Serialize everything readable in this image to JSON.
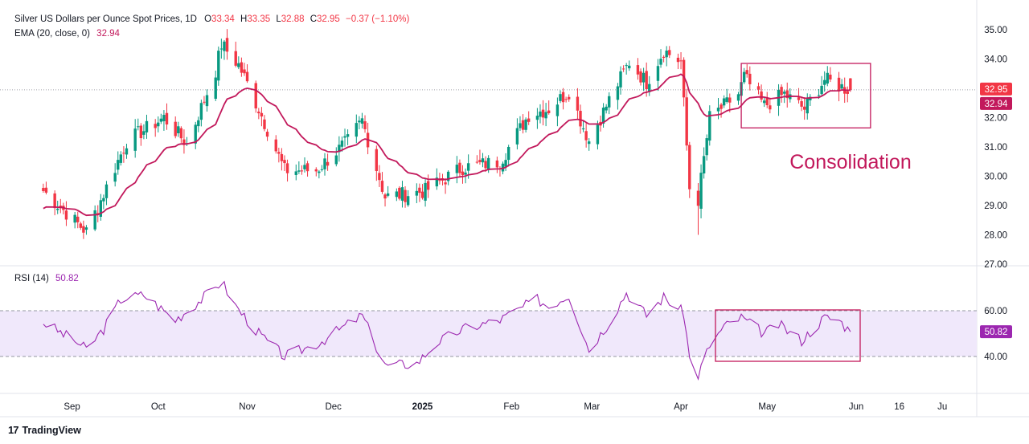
{
  "header": {
    "symbol": "Silver US Dollars per Ounce Spot Prices, 1D",
    "o_label": "O",
    "o_value": "33.34",
    "h_label": "H",
    "h_value": "33.35",
    "l_label": "L",
    "l_value": "32.88",
    "c_label": "C",
    "c_value": "32.95",
    "change": "−0.37 (−1.10%)",
    "ema_label": "EMA (20, close, 0)",
    "ema_value": "32.94",
    "rsi_label": "RSI (14)",
    "rsi_value": "50.82"
  },
  "annotation": {
    "text": "Consolidation"
  },
  "price_badges": {
    "close": "32.95",
    "ema": "32.94",
    "rsi": "50.82"
  },
  "brand": {
    "name": "TradingView",
    "logo": "17"
  },
  "colors": {
    "up": "#089981",
    "down": "#f23645",
    "ema": "#c2185b",
    "rsi": "#9c27b0",
    "rsi_band": "#f0e8fb",
    "box": "#c2185b",
    "axis_text": "#131722"
  },
  "chart_data": [
    {
      "type": "candlestick",
      "title": "Silver US Dollars per Ounce Spot Prices, 1D",
      "ylim": [
        27.0,
        35.3
      ],
      "y_ticks": [
        "35.00",
        "34.00",
        "33.00",
        "32.00",
        "31.00",
        "30.00",
        "29.00",
        "28.00",
        "27.00"
      ],
      "x_ticks": [
        "Sep",
        "Oct",
        "Nov",
        "Dec",
        "2025",
        "Feb",
        "Mar",
        "Apr",
        "May",
        "Jun",
        "16",
        "Ju"
      ],
      "close_anchors": [
        [
          "2024-08-22",
          29.5
        ],
        [
          "2024-09-06",
          28.1
        ],
        [
          "2024-09-12",
          29.4
        ],
        [
          "2024-09-20",
          31.2
        ],
        [
          "2024-10-03",
          32.0
        ],
        [
          "2024-10-11",
          31.1
        ],
        [
          "2024-10-21",
          33.6
        ],
        [
          "2024-10-23",
          34.5
        ],
        [
          "2024-10-29",
          33.8
        ],
        [
          "2024-11-05",
          32.3
        ],
        [
          "2024-11-14",
          30.2
        ],
        [
          "2024-11-25",
          30.2
        ],
        [
          "2024-12-06",
          31.2
        ],
        [
          "2024-12-11",
          31.9
        ],
        [
          "2024-12-19",
          29.3
        ],
        [
          "2024-12-27",
          29.4
        ],
        [
          "2025-01-02",
          29.5
        ],
        [
          "2025-01-15",
          30.3
        ],
        [
          "2025-01-28",
          30.5
        ],
        [
          "2025-02-07",
          32.1
        ],
        [
          "2025-02-14",
          32.3
        ],
        [
          "2025-02-21",
          32.9
        ],
        [
          "2025-02-28",
          31.2
        ],
        [
          "2025-03-07",
          32.6
        ],
        [
          "2025-03-14",
          33.9
        ],
        [
          "2025-03-20",
          33.2
        ],
        [
          "2025-03-26",
          34.3
        ],
        [
          "2025-04-01",
          33.9
        ],
        [
          "2025-04-04",
          29.6
        ],
        [
          "2025-04-07",
          29.2
        ],
        [
          "2025-04-11",
          32.0
        ],
        [
          "2025-04-21",
          32.8
        ],
        [
          "2025-04-23",
          33.4
        ],
        [
          "2025-04-30",
          32.4
        ],
        [
          "2025-05-07",
          32.8
        ],
        [
          "2025-05-14",
          32.3
        ],
        [
          "2025-05-21",
          33.3
        ],
        [
          "2025-05-28",
          33.0
        ],
        [
          "2025-05-30",
          32.95
        ]
      ],
      "ema": {
        "name": "EMA (20, close, 0)",
        "last": 32.94
      },
      "annotations": [
        {
          "text": "Consolidation",
          "box_start": "2025-04-22",
          "box_end": "2025-06-06",
          "box_ylim": [
            31.65,
            33.85
          ]
        }
      ]
    },
    {
      "type": "line",
      "title": "RSI (14)",
      "ylim": [
        30,
        70
      ],
      "y_ticks": [
        "60.00",
        "40.00"
      ],
      "bands": [
        40,
        60
      ],
      "anchors": [
        [
          "2024-08-22",
          55
        ],
        [
          "2024-09-03",
          46
        ],
        [
          "2024-09-06",
          43
        ],
        [
          "2024-09-12",
          52
        ],
        [
          "2024-09-18",
          65
        ],
        [
          "2024-09-26",
          67
        ],
        [
          "2024-10-07",
          56
        ],
        [
          "2024-10-21",
          70
        ],
        [
          "2024-10-23",
          73
        ],
        [
          "2024-10-28",
          62
        ],
        [
          "2024-11-05",
          50
        ],
        [
          "2024-11-14",
          40
        ],
        [
          "2024-11-26",
          46
        ],
        [
          "2024-12-11",
          58
        ],
        [
          "2024-12-19",
          36
        ],
        [
          "2024-12-30",
          37
        ],
        [
          "2025-01-06",
          46
        ],
        [
          "2025-01-15",
          52
        ],
        [
          "2025-01-28",
          56
        ],
        [
          "2025-02-10",
          65
        ],
        [
          "2025-02-14",
          62
        ],
        [
          "2025-02-21",
          67
        ],
        [
          "2025-02-28",
          43
        ],
        [
          "2025-03-07",
          55
        ],
        [
          "2025-03-13",
          68
        ],
        [
          "2025-03-20",
          58
        ],
        [
          "2025-03-26",
          66
        ],
        [
          "2025-04-02",
          59
        ],
        [
          "2025-04-04",
          39
        ],
        [
          "2025-04-07",
          32
        ],
        [
          "2025-04-11",
          45
        ],
        [
          "2025-04-16",
          53
        ],
        [
          "2025-04-22",
          57
        ],
        [
          "2025-04-30",
          50
        ],
        [
          "2025-05-05",
          54
        ],
        [
          "2025-05-13",
          47
        ],
        [
          "2025-05-21",
          57
        ],
        [
          "2025-05-26",
          56
        ],
        [
          "2025-05-30",
          50.82
        ]
      ],
      "last": 50.82
    }
  ]
}
